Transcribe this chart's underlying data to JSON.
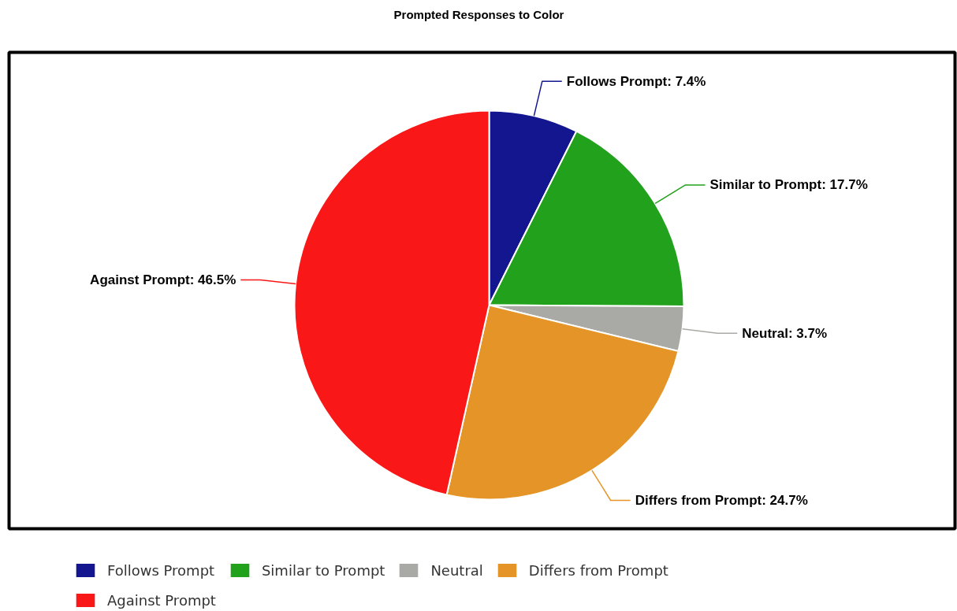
{
  "chart_data": {
    "type": "pie",
    "title": "Prompted Responses to Color",
    "categories": [
      "Follows Prompt",
      "Similar to Prompt",
      "Neutral",
      "Differs from Prompt",
      "Against Prompt"
    ],
    "values": [
      7.4,
      17.7,
      3.7,
      24.7,
      46.5
    ],
    "value_labels": [
      "Follows Prompt: 7.4%",
      "Similar to Prompt: 17.7%",
      "Neutral: 3.7%",
      "Differs from Prompt: 24.7%",
      "Against Prompt: 46.5%"
    ],
    "colors": [
      "#13168f",
      "#22a11d",
      "#a9a9a5",
      "#e59527",
      "#f91717"
    ],
    "legend": "bottom"
  }
}
